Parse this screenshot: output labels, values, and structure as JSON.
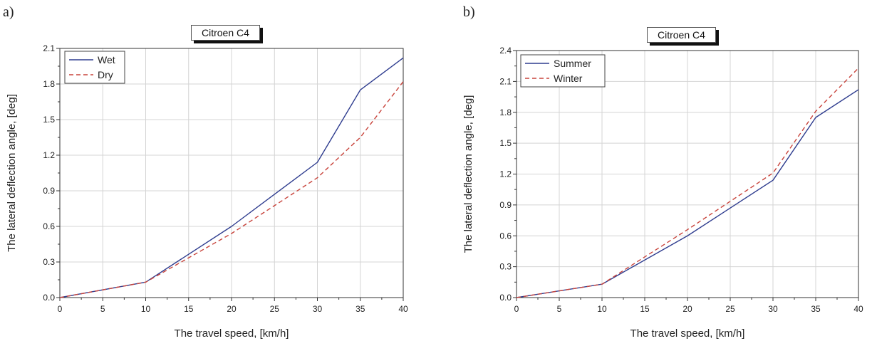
{
  "chart_data": [
    {
      "panel": "a)",
      "type": "line",
      "title": "Citroen C4",
      "xlabel": "The travel speed, [km/h]",
      "ylabel": "The lateral deflection angle, [deg]",
      "xlim": [
        0,
        40
      ],
      "ylim": [
        0,
        2.1
      ],
      "xticks": [
        "0",
        "5",
        "10",
        "15",
        "20",
        "25",
        "30",
        "35",
        "40"
      ],
      "yticks": [
        "0.0",
        "0.3",
        "0.6",
        "0.9",
        "1.2",
        "1.5",
        "1.8",
        "2.1"
      ],
      "grid": true,
      "legend_position": "top-left",
      "x": [
        0,
        10,
        20,
        30,
        35,
        40
      ],
      "series": [
        {
          "name": "Wet",
          "color": "#2f3d8f",
          "style": "solid",
          "values": [
            0,
            0.13,
            0.6,
            1.14,
            1.75,
            2.02
          ]
        },
        {
          "name": "Dry",
          "color": "#c8433b",
          "style": "dashed",
          "values": [
            0,
            0.13,
            0.54,
            1.01,
            1.35,
            1.82
          ]
        }
      ]
    },
    {
      "panel": "b)",
      "type": "line",
      "title": "Citroen C4",
      "xlabel": "The travel speed, [km/h]",
      "ylabel": "The lateral deflection angle, [deg]",
      "xlim": [
        0,
        40
      ],
      "ylim": [
        0,
        2.4
      ],
      "xticks": [
        "0",
        "5",
        "10",
        "15",
        "20",
        "25",
        "30",
        "35",
        "40"
      ],
      "yticks": [
        "0.0",
        "0.3",
        "0.6",
        "0.9",
        "1.2",
        "1.5",
        "1.8",
        "2.1",
        "2.4"
      ],
      "grid": true,
      "legend_position": "top-left",
      "x": [
        0,
        10,
        20,
        30,
        35,
        40
      ],
      "series": [
        {
          "name": "Summer",
          "color": "#2f3d8f",
          "style": "solid",
          "values": [
            0,
            0.13,
            0.6,
            1.14,
            1.75,
            2.02
          ]
        },
        {
          "name": "Winter",
          "color": "#c8433b",
          "style": "dashed",
          "values": [
            0,
            0.13,
            0.66,
            1.21,
            1.81,
            2.23
          ]
        }
      ]
    }
  ]
}
